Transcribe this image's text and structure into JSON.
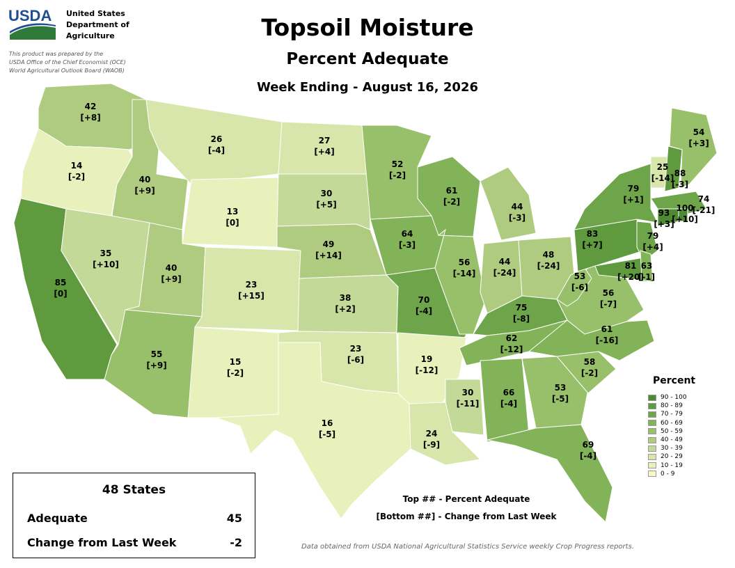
{
  "agency": {
    "logo_text": "USDA",
    "name_lines": [
      "United States",
      "Department of",
      "Agriculture"
    ],
    "credit_lines": [
      "This product was prepared by the",
      "USDA Office of the Chief Economist (OCE)",
      "World Agricultural Outlook Board (WAOB)"
    ]
  },
  "title": "Topsoil Moisture",
  "subtitle": "Percent Adequate",
  "week": "Week Ending - August 16, 2026",
  "legend": {
    "title": "Percent",
    "bins": [
      {
        "range": "90 - 100",
        "color": "#4e8a33"
      },
      {
        "range": "80 - 89",
        "color": "#5f9a3f"
      },
      {
        "range": "70 - 79",
        "color": "#6ea54a"
      },
      {
        "range": "60 - 69",
        "color": "#82b358"
      },
      {
        "range": "50 - 59",
        "color": "#98bf6a"
      },
      {
        "range": "40 - 49",
        "color": "#aecb7f"
      },
      {
        "range": "30 - 39",
        "color": "#c3d997"
      },
      {
        "range": "20 - 29",
        "color": "#d8e6ab"
      },
      {
        "range": "10 - 19",
        "color": "#e8f0bb"
      },
      {
        "range": "0 - 9",
        "color": "#f6f8cb"
      }
    ]
  },
  "states": [
    {
      "abbr": "WA",
      "value": 42,
      "change": "[+8]"
    },
    {
      "abbr": "OR",
      "value": 14,
      "change": "[-2]"
    },
    {
      "abbr": "CA",
      "value": 85,
      "change": "[0]"
    },
    {
      "abbr": "ID",
      "value": 40,
      "change": "[+9]"
    },
    {
      "abbr": "NV",
      "value": 35,
      "change": "[+10]"
    },
    {
      "abbr": "MT",
      "value": 26,
      "change": "[-4]"
    },
    {
      "abbr": "WY",
      "value": 13,
      "change": "[0]"
    },
    {
      "abbr": "UT",
      "value": 40,
      "change": "[+9]"
    },
    {
      "abbr": "AZ",
      "value": 55,
      "change": "[+9]"
    },
    {
      "abbr": "CO",
      "value": 23,
      "change": "[+15]"
    },
    {
      "abbr": "NM",
      "value": 15,
      "change": "[-2]"
    },
    {
      "abbr": "ND",
      "value": 27,
      "change": "[+4]"
    },
    {
      "abbr": "SD",
      "value": 30,
      "change": "[+5]"
    },
    {
      "abbr": "NE",
      "value": 49,
      "change": "[+14]"
    },
    {
      "abbr": "KS",
      "value": 38,
      "change": "[+2]"
    },
    {
      "abbr": "OK",
      "value": 23,
      "change": "[-6]"
    },
    {
      "abbr": "TX",
      "value": 16,
      "change": "[-5]"
    },
    {
      "abbr": "MN",
      "value": 52,
      "change": "[-2]"
    },
    {
      "abbr": "IA",
      "value": 64,
      "change": "[-3]"
    },
    {
      "abbr": "MO",
      "value": 70,
      "change": "[-4]"
    },
    {
      "abbr": "AR",
      "value": 19,
      "change": "[-12]"
    },
    {
      "abbr": "LA",
      "value": 24,
      "change": "[-9]"
    },
    {
      "abbr": "WI",
      "value": 61,
      "change": "[-2]"
    },
    {
      "abbr": "IL",
      "value": 56,
      "change": "[-14]"
    },
    {
      "abbr": "MI",
      "value": 44,
      "change": "[-3]"
    },
    {
      "abbr": "IN",
      "value": 44,
      "change": "[-24]"
    },
    {
      "abbr": "OH",
      "value": 48,
      "change": "[-24]"
    },
    {
      "abbr": "KY",
      "value": 75,
      "change": "[-8]"
    },
    {
      "abbr": "TN",
      "value": 62,
      "change": "[-12]"
    },
    {
      "abbr": "MS",
      "value": 30,
      "change": "[-11]"
    },
    {
      "abbr": "AL",
      "value": 66,
      "change": "[-4]"
    },
    {
      "abbr": "GA",
      "value": 53,
      "change": "[-5]"
    },
    {
      "abbr": "FL",
      "value": 69,
      "change": "[-4]"
    },
    {
      "abbr": "SC",
      "value": 58,
      "change": "[-2]"
    },
    {
      "abbr": "NC",
      "value": 61,
      "change": "[-16]"
    },
    {
      "abbr": "VA",
      "value": 56,
      "change": "[-7]"
    },
    {
      "abbr": "WV",
      "value": 53,
      "change": "[-6]"
    },
    {
      "abbr": "PA",
      "value": 83,
      "change": "[+7]"
    },
    {
      "abbr": "NY",
      "value": 79,
      "change": "[+1]"
    },
    {
      "abbr": "VT",
      "value": 25,
      "change": "[-14]"
    },
    {
      "abbr": "NH",
      "value": 88,
      "change": "[-3]"
    },
    {
      "abbr": "ME",
      "value": 54,
      "change": "[+3]"
    },
    {
      "abbr": "MA",
      "value": 74,
      "change": "[-21]"
    },
    {
      "abbr": "CT",
      "value": 93,
      "change": "[+3]"
    },
    {
      "abbr": "RI",
      "value": 100,
      "change": "[+10]"
    },
    {
      "abbr": "NJ",
      "value": 79,
      "change": "[+4]"
    },
    {
      "abbr": "MD",
      "value": 81,
      "change": "[+20]"
    },
    {
      "abbr": "DE",
      "value": 63,
      "change": "[-1]"
    }
  ],
  "summary": {
    "title": "48 States",
    "adequate_label": "Adequate",
    "adequate_value": "45",
    "change_label": "Change from Last Week",
    "change_value": "-2"
  },
  "notes": {
    "top": "Top ## - Percent Adequate",
    "bottom": "[Bottom ##] - Change from Last Week"
  },
  "source": "Data obtained from USDA National Agricultural Statistics Service weekly Crop Progress reports."
}
